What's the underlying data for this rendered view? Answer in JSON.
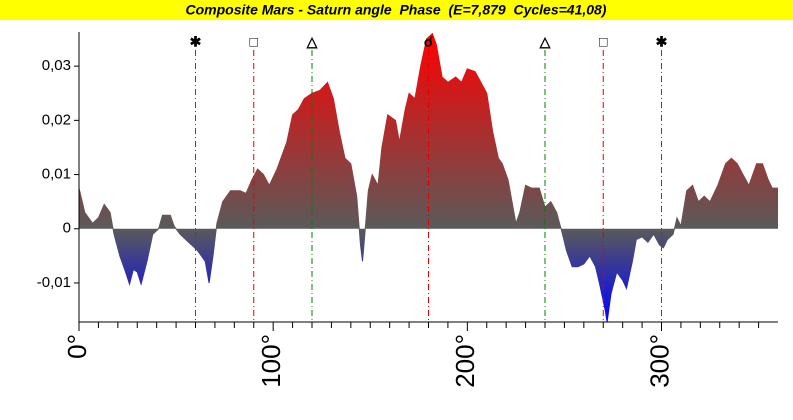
{
  "chart_data": {
    "type": "area",
    "title": "Composite Mars - Saturn angle  Phase  (E=7,879  Cycles=41,08)",
    "title_background": "#ffff00",
    "gradient": [
      "#ff0000",
      "#5a5a5a",
      "#0000ff"
    ],
    "x": [
      0,
      3,
      7,
      10,
      13,
      16,
      18,
      21,
      24,
      26,
      28,
      30,
      32,
      35,
      38,
      41,
      43,
      47,
      49,
      52,
      55,
      58,
      61,
      65,
      67,
      69,
      71,
      74,
      78,
      83,
      86,
      89,
      92,
      95,
      98,
      102,
      107,
      110,
      113,
      116,
      120,
      124,
      128,
      131,
      134,
      137,
      140,
      143,
      145,
      146,
      147,
      149,
      151,
      154,
      156,
      159,
      163,
      165,
      168,
      170,
      173,
      176,
      179,
      182,
      184,
      187,
      190,
      194,
      197,
      200,
      204,
      207,
      210,
      213,
      216,
      218,
      221,
      223,
      225,
      227,
      230,
      233,
      237,
      240,
      243,
      246,
      249,
      251,
      254,
      257,
      260,
      263,
      266,
      268,
      271,
      272,
      274,
      277,
      280,
      282,
      285,
      287,
      290,
      293,
      296,
      299,
      301,
      303,
      306,
      308,
      310,
      313,
      316,
      319,
      322,
      325,
      329,
      333,
      336,
      339,
      342,
      345,
      349,
      352,
      355,
      357,
      360
    ],
    "values": [
      0.0075,
      0.003,
      0.001,
      0.002,
      0.0045,
      0.003,
      -0.001,
      -0.005,
      -0.008,
      -0.0102,
      -0.0075,
      -0.008,
      -0.0102,
      -0.006,
      -0.001,
      0,
      0.0025,
      0.0025,
      0.0005,
      -0.001,
      -0.002,
      -0.003,
      -0.004,
      -0.006,
      -0.01,
      -0.005,
      0.001,
      0.005,
      0.007,
      0.007,
      0.0065,
      0.009,
      0.011,
      0.01,
      0.008,
      0.011,
      0.016,
      0.021,
      0.022,
      0.024,
      0.025,
      0.0255,
      0.027,
      0.024,
      0.018,
      0.013,
      0.012,
      0.006,
      -0.003,
      -0.006,
      -0.002,
      0.007,
      0.01,
      0.008,
      0.015,
      0.021,
      0.02,
      0.016,
      0.022,
      0.025,
      0.024,
      0.03,
      0.035,
      0.036,
      0.034,
      0.028,
      0.027,
      0.028,
      0.027,
      0.0295,
      0.029,
      0.027,
      0.025,
      0.018,
      0.013,
      0.012,
      0.009,
      0.005,
      0.001,
      0.003,
      0.008,
      0.0075,
      0.0075,
      0.004,
      0.005,
      0.003,
      -0.001,
      -0.004,
      -0.007,
      -0.007,
      -0.0065,
      -0.005,
      -0.007,
      -0.01,
      -0.015,
      -0.0172,
      -0.012,
      -0.008,
      -0.0095,
      -0.011,
      -0.006,
      -0.002,
      -0.0015,
      -0.0025,
      -0.001,
      -0.003,
      -0.0035,
      -0.002,
      -0.001,
      0.002,
      0.0005,
      0.007,
      0.008,
      0.005,
      0.006,
      0.005,
      0.008,
      0.012,
      0.013,
      0.012,
      0.01,
      0.008,
      0.012,
      0.012,
      0.009,
      0.0075,
      0.0075
    ],
    "xlim": [
      0,
      360
    ],
    "ylim": [
      -0.0172,
      0.0363
    ],
    "xticks": [
      {
        "value": 0,
        "label": "0°"
      },
      {
        "value": 100,
        "label": "100°"
      },
      {
        "value": 200,
        "label": "200°"
      },
      {
        "value": 300,
        "label": "300°"
      }
    ],
    "xminorticks": [
      10,
      20,
      30,
      40,
      50,
      60,
      70,
      80,
      90,
      110,
      120,
      130,
      140,
      150,
      160,
      170,
      180,
      190,
      210,
      220,
      230,
      240,
      250,
      260,
      270,
      280,
      290,
      310,
      320,
      330,
      340,
      350
    ],
    "yticks": [
      {
        "value": -0.01,
        "label": "-0,01"
      },
      0,
      {
        "value": 0.01,
        "label": "0,01"
      },
      {
        "value": 0.02,
        "label": "0,02"
      },
      {
        "value": 0.03,
        "label": "0,03"
      }
    ],
    "aspects": [
      {
        "x": 60,
        "symbol": "✱",
        "color": "#008000"
      },
      {
        "x": 90,
        "symbol": "□",
        "color": "#e00000"
      },
      {
        "x": 120,
        "symbol": "△",
        "color": "#008000"
      },
      {
        "x": 180,
        "symbol": "☌",
        "color": "#e00000"
      },
      {
        "x": 240,
        "symbol": "△",
        "color": "#008000"
      },
      {
        "x": 270,
        "symbol": "□",
        "color": "#e00000"
      },
      {
        "x": 300,
        "symbol": "✱",
        "color": "#008000"
      }
    ]
  }
}
